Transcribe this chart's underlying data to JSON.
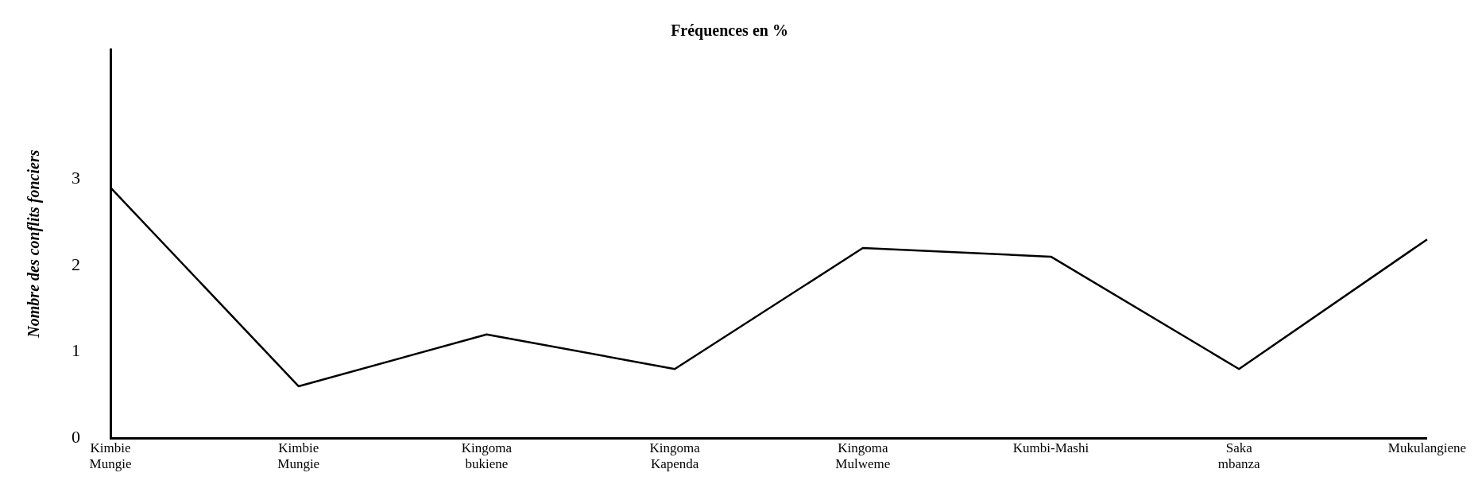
{
  "chart_data": {
    "type": "line",
    "title": "Fréquences en %",
    "ylabel": "Nombre des conflits fonciers",
    "categories": [
      "Kimbie Mungie",
      "Kimbie Mungie",
      "Kingoma bukiene",
      "Kingoma Kapenda",
      "Kingoma Mulweme",
      "Kumbi-Mashi",
      "Saka mbanza",
      "Mukulangiene"
    ],
    "series": [
      {
        "color": "#000000",
        "values": [
          2.9,
          0.6,
          1.2,
          0.8,
          2.2,
          2.1,
          0.8,
          2.3
        ]
      }
    ],
    "ylim": [
      0,
      4.5
    ],
    "yticks": [
      0,
      1,
      2,
      3
    ],
    "grid": false,
    "legend": false,
    "marker": "none",
    "line_style": "solid"
  }
}
